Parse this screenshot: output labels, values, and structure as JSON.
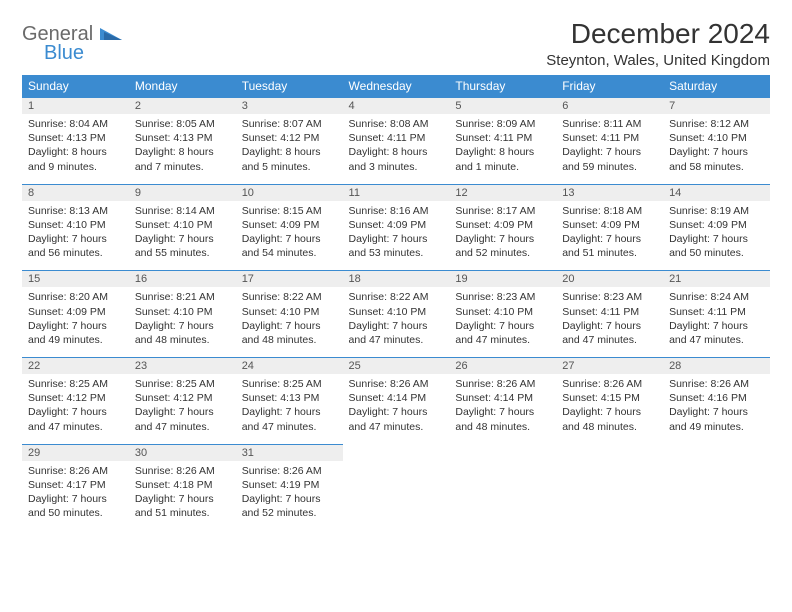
{
  "logo": {
    "general": "General",
    "blue": "Blue"
  },
  "title": "December 2024",
  "location": "Steynton, Wales, United Kingdom",
  "colors": {
    "header_bg": "#3b8bd0",
    "header_text": "#ffffff",
    "daynum_bg": "#eeeeee",
    "border": "#3b8bd0",
    "text": "#333333",
    "logo_gray": "#6a6a6a",
    "logo_blue": "#3b8bd0"
  },
  "day_headers": [
    "Sunday",
    "Monday",
    "Tuesday",
    "Wednesday",
    "Thursday",
    "Friday",
    "Saturday"
  ],
  "weeks": [
    [
      {
        "n": "1",
        "sr": "Sunrise: 8:04 AM",
        "ss": "Sunset: 4:13 PM",
        "d1": "Daylight: 8 hours",
        "d2": "and 9 minutes."
      },
      {
        "n": "2",
        "sr": "Sunrise: 8:05 AM",
        "ss": "Sunset: 4:13 PM",
        "d1": "Daylight: 8 hours",
        "d2": "and 7 minutes."
      },
      {
        "n": "3",
        "sr": "Sunrise: 8:07 AM",
        "ss": "Sunset: 4:12 PM",
        "d1": "Daylight: 8 hours",
        "d2": "and 5 minutes."
      },
      {
        "n": "4",
        "sr": "Sunrise: 8:08 AM",
        "ss": "Sunset: 4:11 PM",
        "d1": "Daylight: 8 hours",
        "d2": "and 3 minutes."
      },
      {
        "n": "5",
        "sr": "Sunrise: 8:09 AM",
        "ss": "Sunset: 4:11 PM",
        "d1": "Daylight: 8 hours",
        "d2": "and 1 minute."
      },
      {
        "n": "6",
        "sr": "Sunrise: 8:11 AM",
        "ss": "Sunset: 4:11 PM",
        "d1": "Daylight: 7 hours",
        "d2": "and 59 minutes."
      },
      {
        "n": "7",
        "sr": "Sunrise: 8:12 AM",
        "ss": "Sunset: 4:10 PM",
        "d1": "Daylight: 7 hours",
        "d2": "and 58 minutes."
      }
    ],
    [
      {
        "n": "8",
        "sr": "Sunrise: 8:13 AM",
        "ss": "Sunset: 4:10 PM",
        "d1": "Daylight: 7 hours",
        "d2": "and 56 minutes."
      },
      {
        "n": "9",
        "sr": "Sunrise: 8:14 AM",
        "ss": "Sunset: 4:10 PM",
        "d1": "Daylight: 7 hours",
        "d2": "and 55 minutes."
      },
      {
        "n": "10",
        "sr": "Sunrise: 8:15 AM",
        "ss": "Sunset: 4:09 PM",
        "d1": "Daylight: 7 hours",
        "d2": "and 54 minutes."
      },
      {
        "n": "11",
        "sr": "Sunrise: 8:16 AM",
        "ss": "Sunset: 4:09 PM",
        "d1": "Daylight: 7 hours",
        "d2": "and 53 minutes."
      },
      {
        "n": "12",
        "sr": "Sunrise: 8:17 AM",
        "ss": "Sunset: 4:09 PM",
        "d1": "Daylight: 7 hours",
        "d2": "and 52 minutes."
      },
      {
        "n": "13",
        "sr": "Sunrise: 8:18 AM",
        "ss": "Sunset: 4:09 PM",
        "d1": "Daylight: 7 hours",
        "d2": "and 51 minutes."
      },
      {
        "n": "14",
        "sr": "Sunrise: 8:19 AM",
        "ss": "Sunset: 4:09 PM",
        "d1": "Daylight: 7 hours",
        "d2": "and 50 minutes."
      }
    ],
    [
      {
        "n": "15",
        "sr": "Sunrise: 8:20 AM",
        "ss": "Sunset: 4:09 PM",
        "d1": "Daylight: 7 hours",
        "d2": "and 49 minutes."
      },
      {
        "n": "16",
        "sr": "Sunrise: 8:21 AM",
        "ss": "Sunset: 4:10 PM",
        "d1": "Daylight: 7 hours",
        "d2": "and 48 minutes."
      },
      {
        "n": "17",
        "sr": "Sunrise: 8:22 AM",
        "ss": "Sunset: 4:10 PM",
        "d1": "Daylight: 7 hours",
        "d2": "and 48 minutes."
      },
      {
        "n": "18",
        "sr": "Sunrise: 8:22 AM",
        "ss": "Sunset: 4:10 PM",
        "d1": "Daylight: 7 hours",
        "d2": "and 47 minutes."
      },
      {
        "n": "19",
        "sr": "Sunrise: 8:23 AM",
        "ss": "Sunset: 4:10 PM",
        "d1": "Daylight: 7 hours",
        "d2": "and 47 minutes."
      },
      {
        "n": "20",
        "sr": "Sunrise: 8:23 AM",
        "ss": "Sunset: 4:11 PM",
        "d1": "Daylight: 7 hours",
        "d2": "and 47 minutes."
      },
      {
        "n": "21",
        "sr": "Sunrise: 8:24 AM",
        "ss": "Sunset: 4:11 PM",
        "d1": "Daylight: 7 hours",
        "d2": "and 47 minutes."
      }
    ],
    [
      {
        "n": "22",
        "sr": "Sunrise: 8:25 AM",
        "ss": "Sunset: 4:12 PM",
        "d1": "Daylight: 7 hours",
        "d2": "and 47 minutes."
      },
      {
        "n": "23",
        "sr": "Sunrise: 8:25 AM",
        "ss": "Sunset: 4:12 PM",
        "d1": "Daylight: 7 hours",
        "d2": "and 47 minutes."
      },
      {
        "n": "24",
        "sr": "Sunrise: 8:25 AM",
        "ss": "Sunset: 4:13 PM",
        "d1": "Daylight: 7 hours",
        "d2": "and 47 minutes."
      },
      {
        "n": "25",
        "sr": "Sunrise: 8:26 AM",
        "ss": "Sunset: 4:14 PM",
        "d1": "Daylight: 7 hours",
        "d2": "and 47 minutes."
      },
      {
        "n": "26",
        "sr": "Sunrise: 8:26 AM",
        "ss": "Sunset: 4:14 PM",
        "d1": "Daylight: 7 hours",
        "d2": "and 48 minutes."
      },
      {
        "n": "27",
        "sr": "Sunrise: 8:26 AM",
        "ss": "Sunset: 4:15 PM",
        "d1": "Daylight: 7 hours",
        "d2": "and 48 minutes."
      },
      {
        "n": "28",
        "sr": "Sunrise: 8:26 AM",
        "ss": "Sunset: 4:16 PM",
        "d1": "Daylight: 7 hours",
        "d2": "and 49 minutes."
      }
    ],
    [
      {
        "n": "29",
        "sr": "Sunrise: 8:26 AM",
        "ss": "Sunset: 4:17 PM",
        "d1": "Daylight: 7 hours",
        "d2": "and 50 minutes."
      },
      {
        "n": "30",
        "sr": "Sunrise: 8:26 AM",
        "ss": "Sunset: 4:18 PM",
        "d1": "Daylight: 7 hours",
        "d2": "and 51 minutes."
      },
      {
        "n": "31",
        "sr": "Sunrise: 8:26 AM",
        "ss": "Sunset: 4:19 PM",
        "d1": "Daylight: 7 hours",
        "d2": "and 52 minutes."
      },
      null,
      null,
      null,
      null
    ]
  ]
}
